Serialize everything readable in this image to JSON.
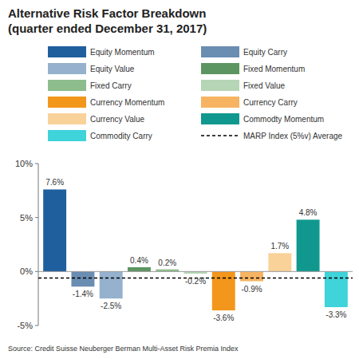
{
  "chart_data": {
    "type": "bar",
    "title": "Alternative Risk Factor Breakdown",
    "subtitle": "(quarter ended December 31, 2017)",
    "source": "Source: Credit Suisse Neuberger Berman Multi-Asset Risk Premia Index",
    "categories": [
      null
    ],
    "series": [
      {
        "name": "Equity Momentum",
        "color": "#1f5f9e",
        "values": [
          7.6
        ],
        "value_labels": [
          "7.6%"
        ]
      },
      {
        "name": "Equity Carry",
        "color": "#6a8db2",
        "values": [
          -1.4
        ],
        "value_labels": [
          "-1.4%"
        ]
      },
      {
        "name": "Equity Value",
        "color": "#95b1cd",
        "values": [
          -2.5
        ],
        "value_labels": [
          "-2.5%"
        ]
      },
      {
        "name": "Fixed Momentum",
        "color": "#5d9562",
        "values": [
          0.4
        ],
        "value_labels": [
          "0.4%"
        ]
      },
      {
        "name": "Fixed Carry",
        "color": "#8dbd8d",
        "values": [
          0.2
        ],
        "value_labels": [
          "0.2%"
        ]
      },
      {
        "name": "Fixed Value",
        "color": "#b6d5b6",
        "values": [
          -0.2
        ],
        "value_labels": [
          "-0.2%"
        ]
      },
      {
        "name": "Currency Momentum",
        "color": "#f3961c",
        "values": [
          -3.6
        ],
        "value_labels": [
          "-3.6%"
        ]
      },
      {
        "name": "Currency Carry",
        "color": "#f6b463",
        "values": [
          -0.9
        ],
        "value_labels": [
          "-0.9%"
        ]
      },
      {
        "name": "Currency Value",
        "color": "#f9d29a",
        "values": [
          1.7
        ],
        "value_labels": [
          "1.7%"
        ]
      },
      {
        "name": "Commodty Momentum",
        "color": "#10988f",
        "values": [
          4.8
        ],
        "value_labels": [
          "4.8%"
        ]
      },
      {
        "name": "Commodity Carry",
        "color": "#3fd3da",
        "values": [
          -3.3
        ],
        "value_labels": [
          "-3.3%"
        ]
      },
      {
        "name": "MARP Index (5%v) Average",
        "type": "line",
        "line_style": "dashed",
        "color": "#000000",
        "values": [
          -0.6
        ]
      }
    ],
    "ylim": [
      -5,
      10
    ],
    "yticks": [
      {
        "value": 10,
        "label": "10%"
      },
      {
        "value": 5,
        "label": "5%"
      },
      {
        "value": 0,
        "label": "0%"
      },
      {
        "value": -5,
        "label": "-5%"
      }
    ],
    "grid": false,
    "legend": "top",
    "data_labels": true,
    "tick_labels": "y"
  }
}
